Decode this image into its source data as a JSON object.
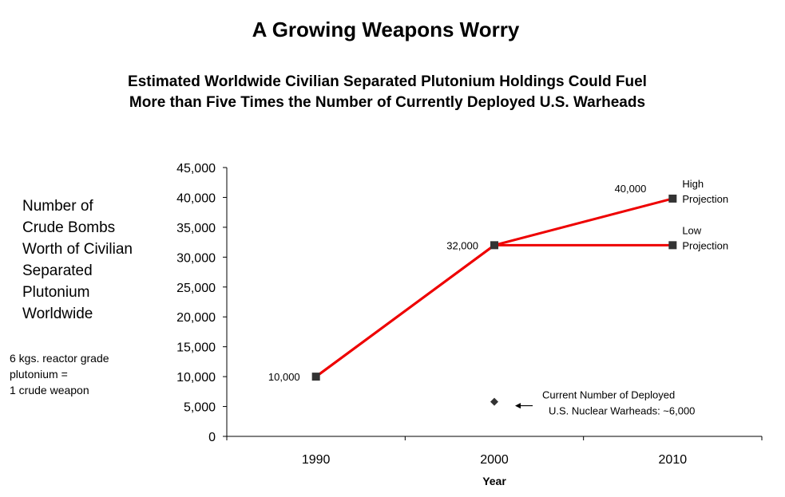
{
  "colors": {
    "line": "#ee0000",
    "marker": "#333333",
    "axis": "#000000"
  },
  "chart_data": {
    "type": "line",
    "title": "A Growing Weapons Worry",
    "subtitle_lines": [
      "Estimated Worldwide Civilian Separated Plutonium Holdings Could Fuel",
      "More than Five Times the Number of Currently Deployed U.S. Warheads"
    ],
    "ylabel_lines": [
      "Number of",
      "Crude Bombs",
      "Worth of Civilian",
      "Separated",
      "Plutonium",
      "Worldwide"
    ],
    "footnote_lines": [
      "6 kgs. reactor grade",
      "plutonium =",
      "1 crude weapon"
    ],
    "xlabel": "Year",
    "categories": [
      "1990",
      "2000",
      "2010"
    ],
    "ylim": [
      0,
      45000
    ],
    "y_ticks": [
      {
        "value": 0,
        "label": "0"
      },
      {
        "value": 5000,
        "label": "5,000"
      },
      {
        "value": 10000,
        "label": "10,000"
      },
      {
        "value": 15000,
        "label": "15,000"
      },
      {
        "value": 20000,
        "label": "20,000"
      },
      {
        "value": 25000,
        "label": "25,000"
      },
      {
        "value": 30000,
        "label": "30,000"
      },
      {
        "value": 35000,
        "label": "35,000"
      },
      {
        "value": 40000,
        "label": "40,000"
      },
      {
        "value": 45000,
        "label": "45,000"
      }
    ],
    "series": [
      {
        "name": "High Projection",
        "name_lines": [
          "High",
          "Projection"
        ],
        "x": [
          "1990",
          "2000",
          "2010"
        ],
        "values": [
          10000,
          32000,
          39800
        ]
      },
      {
        "name": "Low Projection",
        "name_lines": [
          "Low",
          "Projection"
        ],
        "x": [
          "1990",
          "2000",
          "2010"
        ],
        "values": [
          10000,
          32000,
          32000
        ]
      }
    ],
    "data_labels": [
      {
        "x": "1990",
        "value": 10000,
        "label": "10,000"
      },
      {
        "x": "2000",
        "value": 32000,
        "label": "32,000"
      },
      {
        "x": "2010",
        "value": 39800,
        "label": "40,000"
      }
    ],
    "reference_point": {
      "x": "2000",
      "value": 5800,
      "label_lines": [
        "Current Number of Deployed",
        "U.S. Nuclear Warheads: ~6,000"
      ]
    },
    "grid": false,
    "legend": "none"
  }
}
